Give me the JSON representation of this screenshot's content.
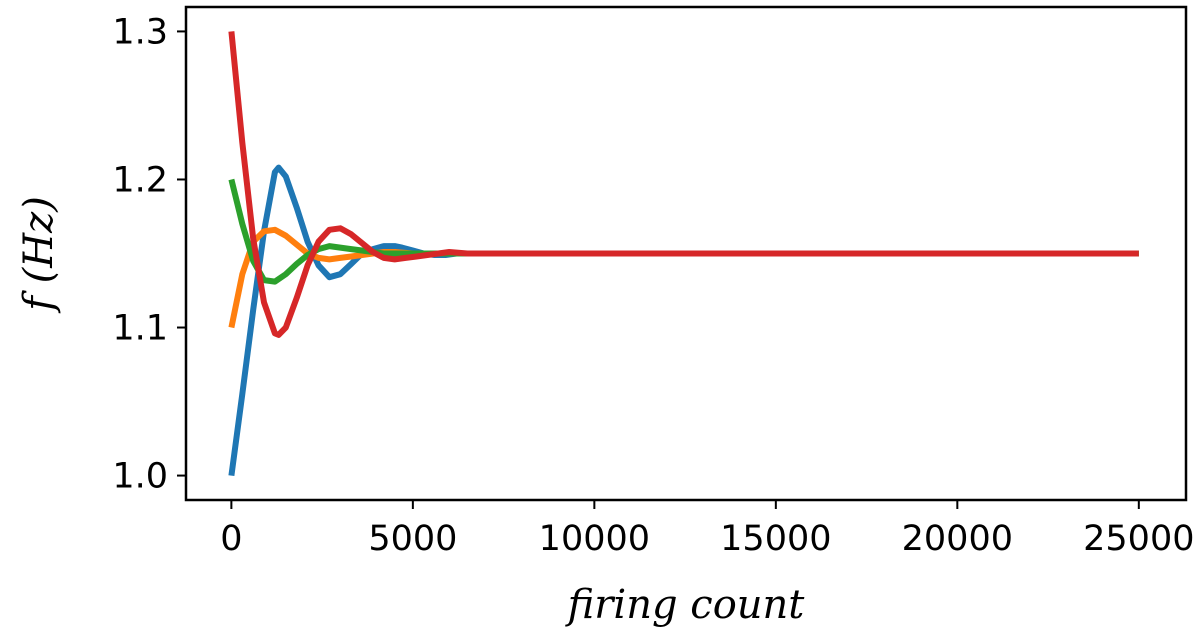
{
  "chart_data": {
    "type": "line",
    "title": "",
    "xlabel": "firing count",
    "ylabel": "f (Hz)",
    "xlim": [
      -1250,
      26300
    ],
    "ylim": [
      0.9835,
      1.3165
    ],
    "xticks": [
      0,
      5000,
      10000,
      15000,
      20000,
      25000
    ],
    "xtick_labels": [
      "0",
      "5000",
      "10000",
      "15000",
      "20000",
      "25000"
    ],
    "yticks": [
      1.0,
      1.1,
      1.2,
      1.3
    ],
    "ytick_labels": [
      "1.0",
      "1.1",
      "1.2",
      "1.3"
    ],
    "grid": false,
    "legend": "none",
    "series": [
      {
        "color": "#1f77b4",
        "x": [
          0,
          300,
          600,
          900,
          1200,
          1300,
          1500,
          1800,
          2100,
          2400,
          2700,
          3000,
          3300,
          3600,
          3900,
          4200,
          4500,
          4700,
          5000,
          5300,
          5600,
          5900,
          6200,
          7000,
          8000,
          10000,
          15000,
          20000,
          25000
        ],
        "values": [
          1.0,
          1.055,
          1.112,
          1.165,
          1.205,
          1.208,
          1.202,
          1.181,
          1.158,
          1.142,
          1.134,
          1.136,
          1.143,
          1.15,
          1.153,
          1.155,
          1.155,
          1.154,
          1.152,
          1.15,
          1.149,
          1.149,
          1.15,
          1.15,
          1.15,
          1.15,
          1.15,
          1.15,
          1.15
        ]
      },
      {
        "color": "#ff7f0e",
        "x": [
          0,
          300,
          600,
          900,
          1200,
          1500,
          1800,
          2100,
          2400,
          2700,
          3000,
          3300,
          3600,
          3900,
          4200,
          4500,
          5000,
          5500,
          6000,
          7000,
          10000,
          15000,
          20000,
          25000
        ],
        "values": [
          1.1,
          1.136,
          1.158,
          1.165,
          1.166,
          1.162,
          1.156,
          1.15,
          1.147,
          1.146,
          1.147,
          1.148,
          1.149,
          1.15,
          1.151,
          1.151,
          1.15,
          1.15,
          1.15,
          1.15,
          1.15,
          1.15,
          1.15,
          1.15
        ]
      },
      {
        "color": "#2ca02c",
        "x": [
          0,
          300,
          600,
          900,
          1200,
          1500,
          1800,
          2100,
          2400,
          2700,
          3000,
          3300,
          3600,
          3900,
          4200,
          4500,
          5000,
          5500,
          6000,
          7000,
          10000,
          15000,
          20000,
          25000
        ],
        "values": [
          1.2,
          1.17,
          1.145,
          1.132,
          1.131,
          1.136,
          1.143,
          1.149,
          1.153,
          1.155,
          1.154,
          1.153,
          1.152,
          1.151,
          1.15,
          1.15,
          1.15,
          1.15,
          1.15,
          1.15,
          1.15,
          1.15,
          1.15,
          1.15
        ]
      },
      {
        "color": "#d62728",
        "x": [
          0,
          300,
          600,
          900,
          1200,
          1300,
          1500,
          1800,
          2100,
          2400,
          2700,
          3000,
          3300,
          3600,
          3900,
          4200,
          4500,
          4800,
          5100,
          5400,
          5700,
          6000,
          6500,
          7000,
          8000,
          10000,
          15000,
          20000,
          25000
        ],
        "values": [
          1.3,
          1.225,
          1.16,
          1.117,
          1.096,
          1.095,
          1.1,
          1.12,
          1.142,
          1.158,
          1.166,
          1.167,
          1.163,
          1.157,
          1.151,
          1.147,
          1.146,
          1.147,
          1.148,
          1.149,
          1.15,
          1.151,
          1.15,
          1.15,
          1.15,
          1.15,
          1.15,
          1.15,
          1.15
        ]
      }
    ]
  }
}
